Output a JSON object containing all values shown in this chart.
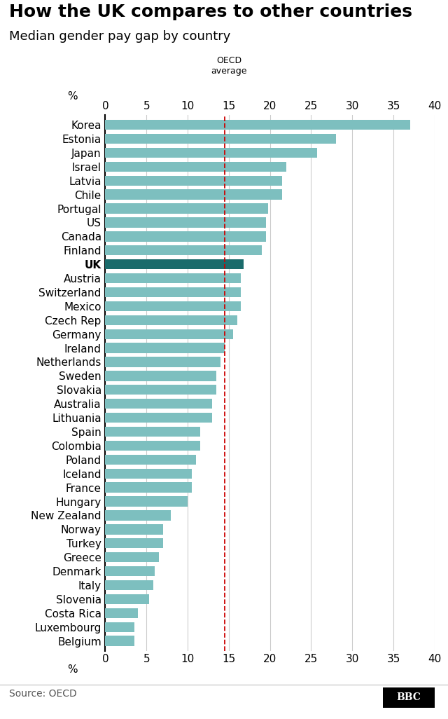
{
  "title": "How the UK compares to other countries",
  "subtitle": "Median gender pay gap by country",
  "source": "Source: OECD",
  "xlabel": "%",
  "xlim": [
    0,
    40
  ],
  "xticks": [
    0,
    5,
    10,
    15,
    20,
    25,
    30,
    35,
    40
  ],
  "oecd_average": 14.5,
  "oecd_label": "OECD\naverage",
  "countries": [
    "Korea",
    "Estonia",
    "Japan",
    "Israel",
    "Latvia",
    "Chile",
    "Portugal",
    "US",
    "Canada",
    "Finland",
    "UK",
    "Austria",
    "Switzerland",
    "Mexico",
    "Czech Rep",
    "Germany",
    "Ireland",
    "Netherlands",
    "Sweden",
    "Slovakia",
    "Australia",
    "Lithuania",
    "Spain",
    "Colombia",
    "Poland",
    "Iceland",
    "France",
    "Hungary",
    "New Zealand",
    "Norway",
    "Turkey",
    "Greece",
    "Denmark",
    "Italy",
    "Slovenia",
    "Costa Rica",
    "Luxembourg",
    "Belgium"
  ],
  "values": [
    37.0,
    28.0,
    25.7,
    22.0,
    21.5,
    21.5,
    19.8,
    19.5,
    19.5,
    19.0,
    16.8,
    16.5,
    16.5,
    16.5,
    16.0,
    15.5,
    14.5,
    14.0,
    13.5,
    13.5,
    13.0,
    13.0,
    11.5,
    11.5,
    11.0,
    10.5,
    10.5,
    10.0,
    8.0,
    7.0,
    7.0,
    6.5,
    6.0,
    5.8,
    5.3,
    4.0,
    3.5,
    3.5
  ],
  "bar_color_default": "#7dbfbf",
  "bar_color_uk": "#1a6b6b",
  "background_color": "#ffffff",
  "grid_color": "#cccccc",
  "title_fontsize": 18,
  "subtitle_fontsize": 13,
  "tick_fontsize": 11,
  "label_fontsize": 11,
  "source_fontsize": 10,
  "oecd_line_color": "#cc0000"
}
